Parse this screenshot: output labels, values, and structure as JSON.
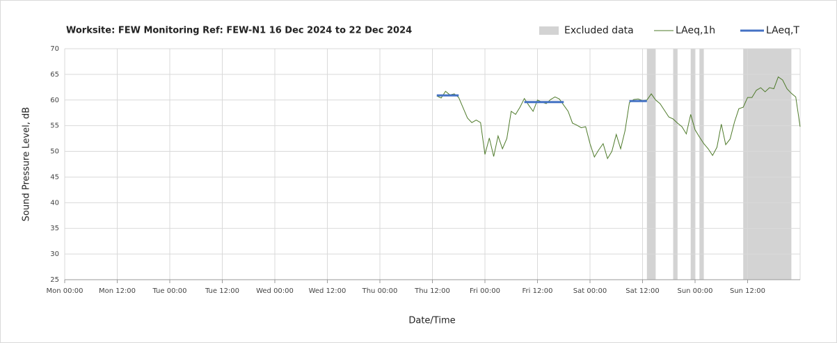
{
  "chart_data": {
    "type": "line",
    "title": "Worksite: FEW   Monitoring Ref: FEW-N1    16 Dec 2024 to 22 Dec 2024",
    "x_label": "Date/Time",
    "y_label": "Sound Pressure Level, dB",
    "xlim": [
      0,
      168
    ],
    "xticks": [
      {
        "value": 0,
        "label": "Mon 00:00"
      },
      {
        "value": 12,
        "label": "Mon 12:00"
      },
      {
        "value": 24,
        "label": "Tue 00:00"
      },
      {
        "value": 36,
        "label": "Tue 12:00"
      },
      {
        "value": 48,
        "label": "Wed 00:00"
      },
      {
        "value": 60,
        "label": "Wed 12:00"
      },
      {
        "value": 72,
        "label": "Thu 00:00"
      },
      {
        "value": 84,
        "label": "Thu 12:00"
      },
      {
        "value": 96,
        "label": "Fri 00:00"
      },
      {
        "value": 108,
        "label": "Fri 12:00"
      },
      {
        "value": 120,
        "label": "Sat 00:00"
      },
      {
        "value": 132,
        "label": "Sat 12:00"
      },
      {
        "value": 144,
        "label": "Sun 00:00"
      },
      {
        "value": 156,
        "label": "Sun 12:00"
      }
    ],
    "ylim": [
      25,
      70
    ],
    "yticks": [
      25,
      30,
      35,
      40,
      45,
      50,
      55,
      60,
      65,
      70
    ],
    "grid": true,
    "legend": "top-right",
    "excluded": {
      "name": "Excluded data",
      "color": "#d3d3d3",
      "ranges": [
        [
          133,
          135
        ],
        [
          139,
          140
        ],
        [
          143,
          144
        ],
        [
          145,
          146
        ],
        [
          155,
          166
        ]
      ]
    },
    "series": [
      {
        "name": "LAeq,1h",
        "color": "#4e7a2a",
        "x": [
          85,
          86,
          87,
          88,
          89,
          90,
          91,
          92,
          93,
          94,
          95,
          96,
          97,
          98,
          99,
          100,
          101,
          102,
          103,
          104,
          105,
          106,
          107,
          108,
          109,
          110,
          111,
          112,
          113,
          114,
          115,
          116,
          117,
          118,
          119,
          120,
          121,
          122,
          123,
          124,
          125,
          126,
          127,
          128,
          129,
          130,
          131,
          132,
          133,
          134,
          135,
          136,
          137,
          138,
          139,
          140,
          141,
          142,
          143,
          144,
          145,
          146,
          147,
          148,
          149,
          150,
          151,
          152,
          153,
          154,
          155,
          156,
          157,
          158,
          159,
          160,
          161,
          162,
          163,
          164,
          165,
          166,
          167,
          168
        ],
        "values": [
          60.8,
          60.4,
          61.7,
          61.0,
          61.2,
          60.5,
          58.5,
          56.5,
          55.6,
          56.1,
          55.6,
          49.4,
          52.6,
          49.0,
          53.0,
          50.5,
          52.5,
          57.8,
          57.2,
          58.6,
          60.3,
          59.0,
          57.8,
          60.0,
          59.6,
          59.3,
          60.1,
          60.6,
          60.2,
          59.0,
          57.8,
          55.5,
          55.1,
          54.6,
          54.8,
          51.5,
          48.9,
          50.3,
          51.5,
          48.6,
          50.0,
          53.3,
          50.5,
          54.0,
          59.5,
          60.1,
          60.2,
          59.9,
          60.0,
          61.2,
          60.0,
          59.3,
          58.0,
          56.7,
          56.3,
          55.5,
          54.8,
          53.4,
          57.2,
          54.2,
          52.8,
          51.5,
          50.5,
          49.2,
          50.8,
          55.3,
          51.3,
          52.4,
          55.7,
          58.3,
          58.6,
          60.5,
          60.5,
          61.9,
          62.4,
          61.6,
          62.4,
          62.2,
          64.5,
          63.9,
          62.2,
          61.3,
          60.6,
          54.8
        ]
      },
      {
        "name": "LAeq,T",
        "color": "#4472c4",
        "x_start": [
          85,
          105,
          129
        ],
        "x_end": [
          90,
          114,
          133
        ],
        "values": [
          60.9,
          59.6,
          59.8
        ]
      }
    ]
  }
}
